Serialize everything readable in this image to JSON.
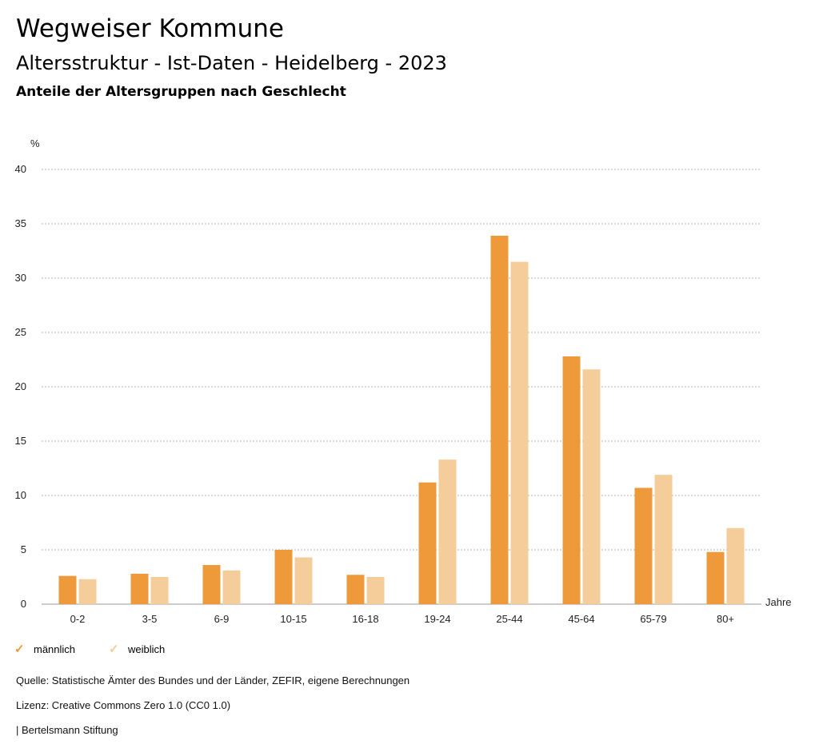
{
  "header": {
    "title": "Wegweiser Kommune",
    "subtitle": "Altersstruktur - Ist-Daten - Heidelberg - 2023",
    "subheadline": "Anteile der Altersgruppen nach Geschlecht"
  },
  "legend": {
    "items": [
      {
        "label": "männlich",
        "color": "#ee9a3a"
      },
      {
        "label": "weiblich",
        "color": "#f5cd9b"
      }
    ]
  },
  "footer": {
    "source": "Quelle: Statistische Ämter des Bundes und der Länder, ZEFIR, eigene Berechnungen",
    "license": "Lizenz: Creative Commons Zero 1.0 (CC0 1.0)",
    "publisher": "| Bertelsmann Stiftung"
  },
  "chart_data": {
    "type": "bar",
    "categories": [
      "0-2",
      "3-5",
      "6-9",
      "10-15",
      "16-18",
      "19-24",
      "25-44",
      "45-64",
      "65-79",
      "80+"
    ],
    "series": [
      {
        "name": "männlich",
        "color": "#ee9a3a",
        "values": [
          2.6,
          2.8,
          3.6,
          5.0,
          2.7,
          11.2,
          33.9,
          22.8,
          10.7,
          4.8
        ]
      },
      {
        "name": "weiblich",
        "color": "#f5cd9b",
        "values": [
          2.3,
          2.5,
          3.1,
          4.3,
          2.5,
          13.3,
          31.5,
          21.6,
          11.9,
          7.0
        ]
      }
    ],
    "ylabel": "%",
    "xlabel": "Jahre",
    "ylim": [
      0,
      40
    ],
    "yticks": [
      0,
      5,
      10,
      15,
      20,
      25,
      30,
      35,
      40
    ],
    "grid": true,
    "legend_position": "bottom-left"
  }
}
